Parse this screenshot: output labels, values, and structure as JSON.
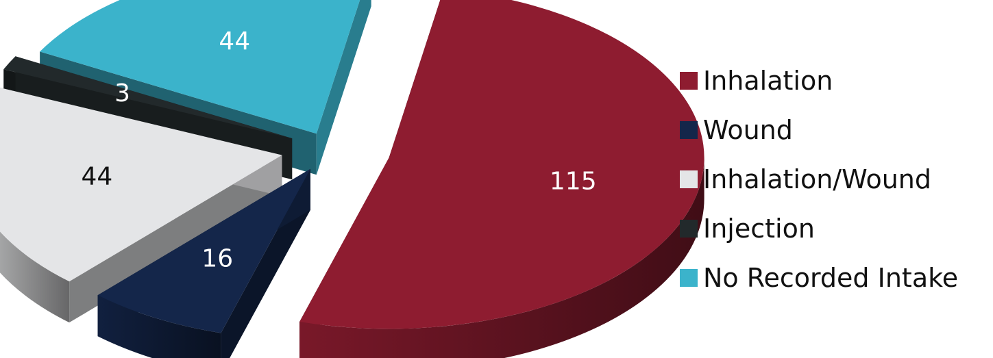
{
  "chart_data": {
    "type": "pie",
    "categories": [
      "Inhalation",
      "Wound",
      "Inhalation/Wound",
      "Injection",
      "No Recorded Intake"
    ],
    "values": [
      115,
      16,
      44,
      3,
      44
    ],
    "data_labels": [
      "115",
      "16",
      "44",
      "3",
      "44"
    ],
    "colors": [
      "#8e1c30",
      "#14264a",
      "#e4e5e7",
      "#22292b",
      "#3bb3cb"
    ],
    "label_colors": [
      "#ffffff",
      "#ffffff",
      "#111111",
      "#ffffff",
      "#ffffff"
    ],
    "legend": {
      "position": "right",
      "entries": [
        "Inhalation",
        "Wound",
        "Inhalation/Wound",
        "Injection",
        "No Recorded Intake"
      ]
    },
    "exploded": true,
    "style": "3d"
  }
}
